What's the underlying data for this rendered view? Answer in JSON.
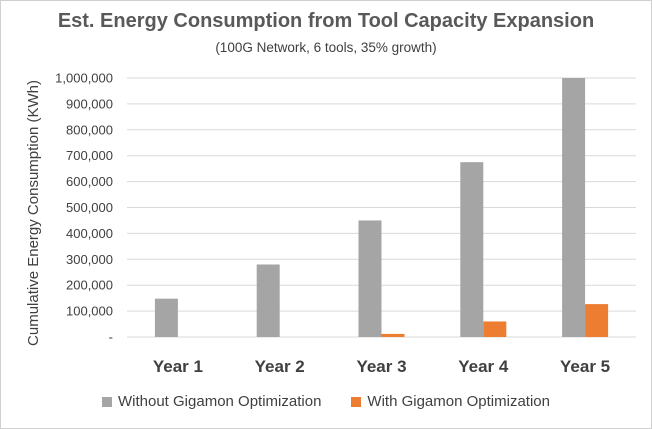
{
  "chart_data": {
    "type": "bar",
    "title": "Est. Energy Consumption from Tool Capacity Expansion",
    "subtitle": "(100G Network, 6 tools, 35% growth)",
    "xlabel": "",
    "ylabel": "Cumulative Energy Consumption (KWh)",
    "categories": [
      "Year 1",
      "Year 2",
      "Year 3",
      "Year 4",
      "Year 5"
    ],
    "series": [
      {
        "name": "Without Gigamon Optimization",
        "color": "#a5a5a5",
        "values": [
          148000,
          280000,
          450000,
          675000,
          1000000
        ]
      },
      {
        "name": "With Gigamon Optimization",
        "color": "#ed7d31",
        "values": [
          0,
          0,
          12000,
          60000,
          127000
        ]
      }
    ],
    "ylim": [
      0,
      1000000
    ],
    "yticks": [
      0,
      100000,
      200000,
      300000,
      400000,
      500000,
      600000,
      700000,
      800000,
      900000,
      1000000
    ],
    "ytick_labels": [
      "-",
      "100,000",
      "200,000",
      "300,000",
      "400,000",
      "500,000",
      "600,000",
      "700,000",
      "800,000",
      "900,000",
      "1,000,000"
    ],
    "grid": true,
    "legend_position": "bottom"
  }
}
